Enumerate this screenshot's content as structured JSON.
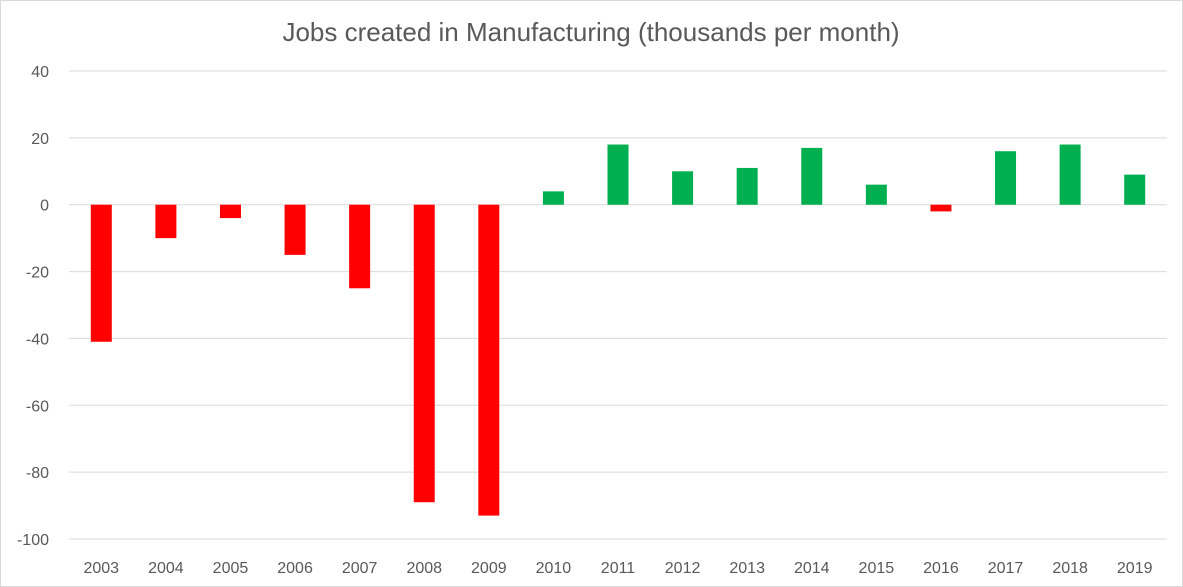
{
  "chart_data": {
    "type": "bar",
    "title": "Jobs created in Manufacturing (thousands per month)",
    "xlabel": "",
    "ylabel": "",
    "ylim": [
      -100,
      40
    ],
    "yticks": [
      40,
      20,
      0,
      -20,
      -40,
      -60,
      -80,
      -100
    ],
    "grid": true,
    "legend": "none",
    "categories": [
      "2003",
      "2004",
      "2005",
      "2006",
      "2007",
      "2008",
      "2009",
      "2010",
      "2011",
      "2012",
      "2013",
      "2014",
      "2015",
      "2016",
      "2017",
      "2018",
      "2019"
    ],
    "values": [
      -41,
      -10,
      -4,
      -15,
      -25,
      -89,
      -93,
      4,
      18,
      10,
      11,
      17,
      6,
      -2,
      16,
      18,
      9
    ],
    "colors": {
      "positive": "#00b050",
      "negative": "#ff0000",
      "text": "#595959",
      "grid": "#d9d9d9"
    }
  }
}
